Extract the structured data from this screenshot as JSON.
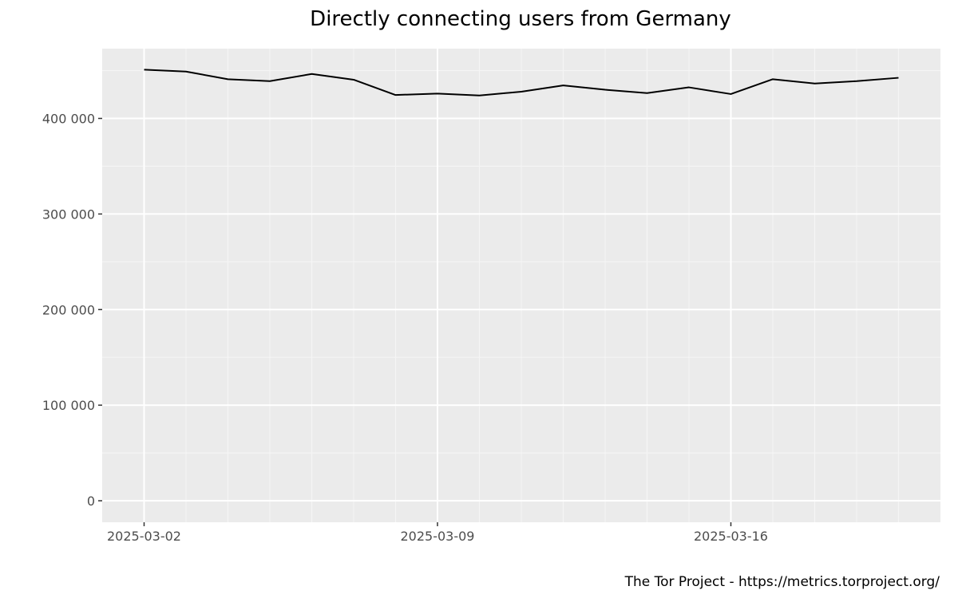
{
  "chart_data": {
    "type": "line",
    "title": "Directly connecting users from Germany",
    "xlabel": "",
    "ylabel": "",
    "x": [
      "2025-03-02",
      "2025-03-03",
      "2025-03-04",
      "2025-03-05",
      "2025-03-06",
      "2025-03-07",
      "2025-03-08",
      "2025-03-09",
      "2025-03-10",
      "2025-03-11",
      "2025-03-12",
      "2025-03-13",
      "2025-03-14",
      "2025-03-15",
      "2025-03-16",
      "2025-03-17",
      "2025-03-18",
      "2025-03-19",
      "2025-03-20"
    ],
    "series": [
      {
        "name": "Directly connecting users",
        "values": [
          451000,
          449000,
          441000,
          439000,
          446500,
          440500,
          424500,
          426000,
          424000,
          428000,
          434500,
          430000,
          426500,
          432500,
          425500,
          441000,
          436500,
          439000,
          442500
        ]
      }
    ],
    "x_ticks": [
      "2025-03-02",
      "2025-03-09",
      "2025-03-16"
    ],
    "y_ticks": [
      0,
      100000,
      200000,
      300000,
      400000
    ],
    "y_tick_labels": [
      "0",
      "100 000",
      "200 000",
      "300 000",
      "400 000"
    ],
    "ylim": [
      -22500,
      473000
    ],
    "xlim": [
      "2025-03-01",
      "2025-03-21"
    ],
    "grid": true,
    "legend": "none",
    "colors": {
      "panel_background": "#ebebeb",
      "grid_major": "#ffffff",
      "grid_minor": "#f5f5f5",
      "line": "#000000",
      "tick_text": "#4d4d4d"
    }
  },
  "caption": "The Tor Project - https://metrics.torproject.org/"
}
